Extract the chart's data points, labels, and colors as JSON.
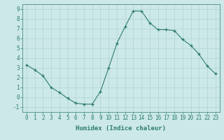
{
  "x": [
    0,
    1,
    2,
    3,
    4,
    5,
    6,
    7,
    8,
    9,
    10,
    11,
    12,
    13,
    14,
    15,
    16,
    17,
    18,
    19,
    20,
    21,
    22,
    23
  ],
  "y": [
    3.3,
    2.8,
    2.2,
    1.0,
    0.5,
    -0.1,
    -0.6,
    -0.7,
    -0.7,
    0.6,
    3.0,
    5.5,
    7.2,
    8.8,
    8.8,
    7.6,
    6.9,
    6.9,
    6.8,
    5.9,
    5.3,
    4.4,
    3.2,
    2.4
  ],
  "line_color": "#2e7d6e",
  "bg_color": "#cce8e8",
  "grid_color": "#b0d4d4",
  "xlabel": "Humidex (Indice chaleur)",
  "ylim": [
    -1.5,
    9.5
  ],
  "xlim": [
    -0.5,
    23.5
  ],
  "yticks": [
    -1,
    0,
    1,
    2,
    3,
    4,
    5,
    6,
    7,
    8,
    9
  ],
  "xticks": [
    0,
    1,
    2,
    3,
    4,
    5,
    6,
    7,
    8,
    9,
    10,
    11,
    12,
    13,
    14,
    15,
    16,
    17,
    18,
    19,
    20,
    21,
    22,
    23
  ],
  "xlabel_fontsize": 6.5,
  "tick_fontsize": 5.5,
  "marker": "+",
  "marker_size": 3.5,
  "line_width": 0.8
}
